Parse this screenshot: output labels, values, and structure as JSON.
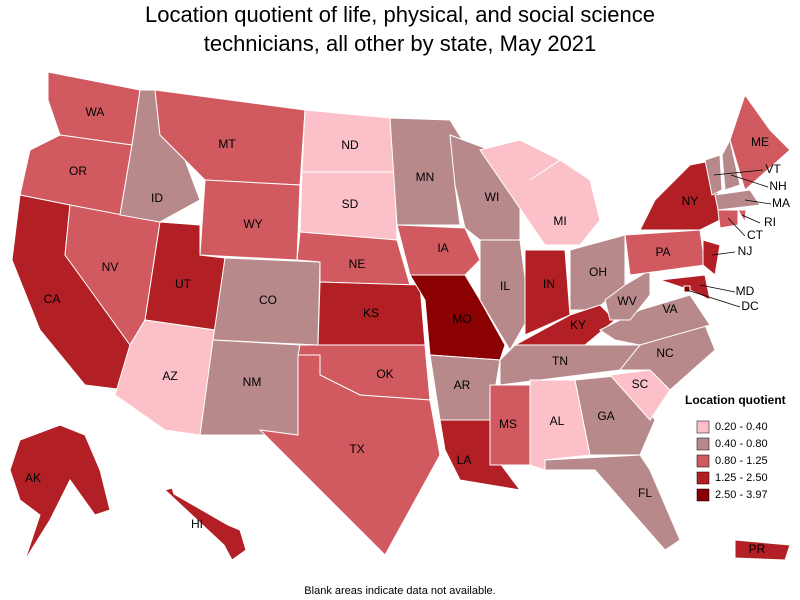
{
  "title": [
    "Location quotient of life, physical, and social science",
    "technicians, all other by state, May 2021"
  ],
  "legend": {
    "title": "Location quotient",
    "items": [
      {
        "label": "0.20 - 0.40",
        "color": "#fbc0c8"
      },
      {
        "label": "0.40 - 0.80",
        "color": "#b8898b"
      },
      {
        "label": "0.80 - 1.25",
        "color": "#d05a60"
      },
      {
        "label": "1.25 - 2.50",
        "color": "#b21f24"
      },
      {
        "label": "2.50 - 3.97",
        "color": "#8b0000"
      }
    ]
  },
  "states": [
    {
      "abbr": "WA",
      "color": "#d05a60"
    },
    {
      "abbr": "OR",
      "color": "#d05a60"
    },
    {
      "abbr": "CA",
      "color": "#b21f24"
    },
    {
      "abbr": "NV",
      "color": "#d05a60"
    },
    {
      "abbr": "ID",
      "color": "#b8898b"
    },
    {
      "abbr": "MT",
      "color": "#d05a60"
    },
    {
      "abbr": "WY",
      "color": "#d05a60"
    },
    {
      "abbr": "UT",
      "color": "#b21f24"
    },
    {
      "abbr": "AZ",
      "color": "#fbc0c8"
    },
    {
      "abbr": "CO",
      "color": "#b8898b"
    },
    {
      "abbr": "NM",
      "color": "#b8898b"
    },
    {
      "abbr": "ND",
      "color": "#fbc0c8"
    },
    {
      "abbr": "SD",
      "color": "#fbc0c8"
    },
    {
      "abbr": "NE",
      "color": "#d05a60"
    },
    {
      "abbr": "KS",
      "color": "#b21f24"
    },
    {
      "abbr": "OK",
      "color": "#d05a60"
    },
    {
      "abbr": "TX",
      "color": "#d05a60"
    },
    {
      "abbr": "MN",
      "color": "#b8898b"
    },
    {
      "abbr": "IA",
      "color": "#d05a60"
    },
    {
      "abbr": "MO",
      "color": "#8b0000"
    },
    {
      "abbr": "AR",
      "color": "#b8898b"
    },
    {
      "abbr": "LA",
      "color": "#b21f24"
    },
    {
      "abbr": "WI",
      "color": "#b8898b"
    },
    {
      "abbr": "IL",
      "color": "#b8898b"
    },
    {
      "abbr": "MI",
      "color": "#fbc0c8"
    },
    {
      "abbr": "IN",
      "color": "#b21f24"
    },
    {
      "abbr": "OH",
      "color": "#b8898b"
    },
    {
      "abbr": "KY",
      "color": "#b21f24"
    },
    {
      "abbr": "TN",
      "color": "#b8898b"
    },
    {
      "abbr": "MS",
      "color": "#d05a60"
    },
    {
      "abbr": "AL",
      "color": "#fbc0c8"
    },
    {
      "abbr": "GA",
      "color": "#b8898b"
    },
    {
      "abbr": "FL",
      "color": "#b8898b"
    },
    {
      "abbr": "SC",
      "color": "#fbc0c8"
    },
    {
      "abbr": "NC",
      "color": "#b8898b"
    },
    {
      "abbr": "VA",
      "color": "#b8898b"
    },
    {
      "abbr": "WV",
      "color": "#b8898b"
    },
    {
      "abbr": "PA",
      "color": "#d05a60"
    },
    {
      "abbr": "NY",
      "color": "#b21f24"
    },
    {
      "abbr": "NJ",
      "color": "#b21f24"
    },
    {
      "abbr": "MD",
      "color": "#b21f24"
    },
    {
      "abbr": "DC",
      "color": "#8b0000"
    },
    {
      "abbr": "VT",
      "color": "#b8898b"
    },
    {
      "abbr": "NH",
      "color": "#b8898b"
    },
    {
      "abbr": "ME",
      "color": "#d05a60"
    },
    {
      "abbr": "MA",
      "color": "#b8898b"
    },
    {
      "abbr": "CT",
      "color": "#d05a60"
    },
    {
      "abbr": "RI",
      "color": "#d05a60"
    },
    {
      "abbr": "AK",
      "color": "#b21f24"
    },
    {
      "abbr": "HI",
      "color": "#b21f24"
    },
    {
      "abbr": "PR",
      "color": "#b21f24"
    }
  ],
  "footnote": "Blank areas indicate data not available."
}
